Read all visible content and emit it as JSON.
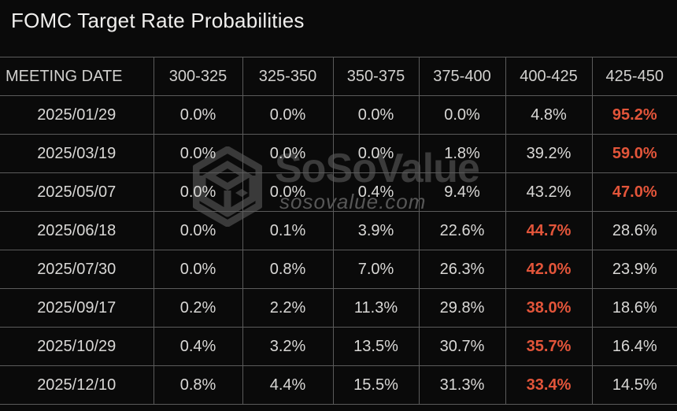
{
  "title": "FOMC Target Rate Probabilities",
  "watermark": {
    "brand": "SoSoValue",
    "domain": "sosovalue.com"
  },
  "colors": {
    "background": "#0a0a0a",
    "grid_line": "#5b5b5b",
    "text": "#d9d8d6",
    "title_text": "#f0efed",
    "highlight": "#e3553a",
    "watermark_gray": "#3b3b3b"
  },
  "table": {
    "columns": [
      "MEETING DATE",
      "300-325",
      "325-350",
      "350-375",
      "375-400",
      "400-425",
      "425-450"
    ],
    "rows": [
      {
        "date": "2025/01/29",
        "values": [
          "0.0%",
          "0.0%",
          "0.0%",
          "0.0%",
          "4.8%",
          "95.2%"
        ],
        "highlight": 5
      },
      {
        "date": "2025/03/19",
        "values": [
          "0.0%",
          "0.0%",
          "0.0%",
          "1.8%",
          "39.2%",
          "59.0%"
        ],
        "highlight": 5
      },
      {
        "date": "2025/05/07",
        "values": [
          "0.0%",
          "0.0%",
          "0.4%",
          "9.4%",
          "43.2%",
          "47.0%"
        ],
        "highlight": 5
      },
      {
        "date": "2025/06/18",
        "values": [
          "0.0%",
          "0.1%",
          "3.9%",
          "22.6%",
          "44.7%",
          "28.6%"
        ],
        "highlight": 4
      },
      {
        "date": "2025/07/30",
        "values": [
          "0.0%",
          "0.8%",
          "7.0%",
          "26.3%",
          "42.0%",
          "23.9%"
        ],
        "highlight": 4
      },
      {
        "date": "2025/09/17",
        "values": [
          "0.2%",
          "2.2%",
          "11.3%",
          "29.8%",
          "38.0%",
          "18.6%"
        ],
        "highlight": 4
      },
      {
        "date": "2025/10/29",
        "values": [
          "0.4%",
          "3.2%",
          "13.5%",
          "30.7%",
          "35.7%",
          "16.4%"
        ],
        "highlight": 4
      },
      {
        "date": "2025/12/10",
        "values": [
          "0.8%",
          "4.4%",
          "15.5%",
          "31.3%",
          "33.4%",
          "14.5%"
        ],
        "highlight": 4
      }
    ]
  },
  "chart_data": {
    "type": "table",
    "title": "FOMC Target Rate Probabilities",
    "unit": "%",
    "categories": [
      "2025/01/29",
      "2025/03/19",
      "2025/05/07",
      "2025/06/18",
      "2025/07/30",
      "2025/09/17",
      "2025/10/29",
      "2025/12/10"
    ],
    "series": [
      {
        "name": "300-325",
        "values": [
          0.0,
          0.0,
          0.0,
          0.0,
          0.0,
          0.2,
          0.4,
          0.8
        ]
      },
      {
        "name": "325-350",
        "values": [
          0.0,
          0.0,
          0.0,
          0.1,
          0.8,
          2.2,
          3.2,
          4.4
        ]
      },
      {
        "name": "350-375",
        "values": [
          0.0,
          0.0,
          0.4,
          3.9,
          7.0,
          11.3,
          13.5,
          15.5
        ]
      },
      {
        "name": "375-400",
        "values": [
          0.0,
          1.8,
          9.4,
          22.6,
          26.3,
          29.8,
          30.7,
          31.3
        ]
      },
      {
        "name": "400-425",
        "values": [
          4.8,
          39.2,
          43.2,
          44.7,
          42.0,
          38.0,
          35.7,
          33.4
        ]
      },
      {
        "name": "425-450",
        "values": [
          95.2,
          59.0,
          47.0,
          28.6,
          23.9,
          18.6,
          16.4,
          14.5
        ]
      }
    ],
    "layout_hints": {
      "grid": true,
      "row_max_highlight_color": "#e3553a",
      "theme": "dark"
    }
  }
}
